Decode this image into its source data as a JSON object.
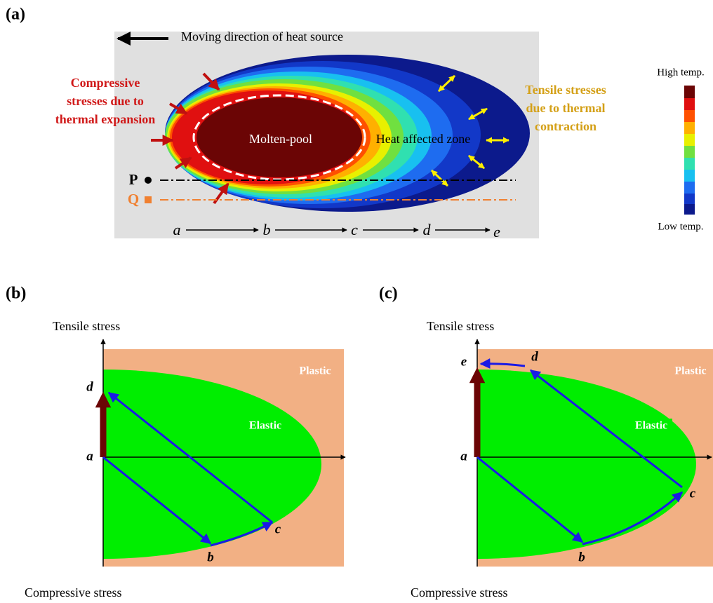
{
  "panel_a": {
    "label": "(a)",
    "direction": "Moving direction of heat source",
    "compressive": [
      "Compressive",
      "stresses due to",
      "thermal expansion"
    ],
    "tensile": [
      "Tensile stresses",
      "due to thermal",
      "contraction"
    ],
    "molten_pool": "Molten-pool",
    "haz": "Heat affected zone",
    "points": [
      "P",
      "Q"
    ],
    "stages": [
      "a",
      "b",
      "c",
      "d",
      "e"
    ],
    "colorbar": {
      "high": "High temp.",
      "low": "Low temp."
    }
  },
  "panel_b": {
    "label": "(b)",
    "y_top": "Tensile stress",
    "y_bottom": "Compressive stress",
    "plastic": "Plastic",
    "elastic": "Elastic",
    "points": [
      "a",
      "b",
      "c",
      "d"
    ]
  },
  "panel_c": {
    "label": "(c)",
    "y_top": "Tensile stress",
    "y_bottom": "Compressive stress",
    "plastic": "Plastic",
    "elastic": "Elastic",
    "points": [
      "a",
      "b",
      "c",
      "d",
      "e"
    ]
  }
}
